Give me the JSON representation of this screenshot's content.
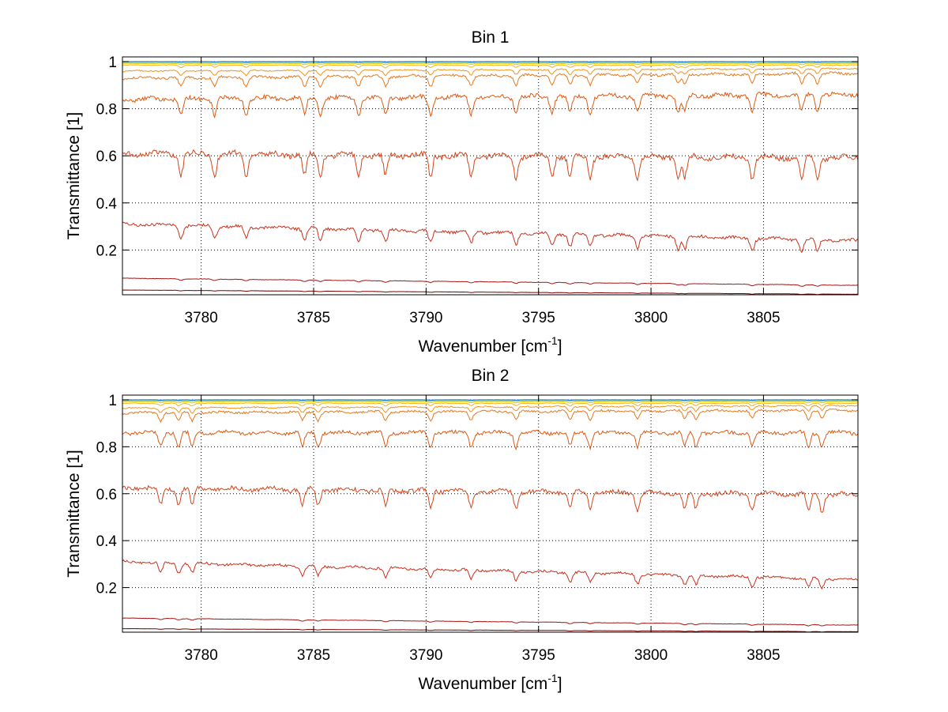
{
  "chart_data": [
    {
      "type": "line",
      "title": "Bin 1",
      "xlabel": "Wavenumber [cm",
      "xlabel_sup": "-1",
      "xlabel_end": "]",
      "ylabel": "Transmittance [1]",
      "xlim": [
        3776.5,
        3809.2
      ],
      "ylim": [
        0.01,
        1.02
      ],
      "xticks": [
        3780,
        3785,
        3790,
        3795,
        3800,
        3805
      ],
      "yticks": [
        0.2,
        0.4,
        0.6,
        0.8,
        1
      ],
      "ytick_labels": [
        "0.2",
        "0.4",
        "0.6",
        "0.8",
        "1"
      ],
      "grid": true,
      "line_lists": [
        3779.1,
        3780.6,
        3782.0,
        3784.6,
        3785.3,
        3787.0,
        3788.2,
        3790.2,
        3792.0,
        3794.0,
        3795.6,
        3796.4,
        3797.3,
        3799.4,
        3801.2,
        3801.5,
        3804.5,
        3806.7,
        3807.4
      ],
      "series": [
        {
          "color": "#7a0000",
          "start": 0.03,
          "end": 0.012,
          "depth": 0.002
        },
        {
          "color": "#a51414",
          "start": 0.08,
          "end": 0.05,
          "depth": 0.006
        },
        {
          "color": "#c8321e",
          "start": 0.31,
          "end": 0.24,
          "depth": 0.05
        },
        {
          "color": "#d2461e",
          "start": 0.61,
          "end": 0.59,
          "depth": 0.09
        },
        {
          "color": "#dc5a14",
          "start": 0.84,
          "end": 0.86,
          "depth": 0.07
        },
        {
          "color": "#e6781e",
          "start": 0.93,
          "end": 0.95,
          "depth": 0.04
        },
        {
          "color": "#f0961e",
          "start": 0.96,
          "end": 0.97,
          "depth": 0.02
        },
        {
          "color": "#f5b41e",
          "start": 0.985,
          "end": 0.985,
          "depth": 0.01
        },
        {
          "color": "#e6c814",
          "start": 0.992,
          "end": 0.992,
          "depth": 0.005
        },
        {
          "color": "#b4d232",
          "start": 0.996,
          "end": 0.996,
          "depth": 0.003
        },
        {
          "color": "#3cbec8",
          "start": 0.999,
          "end": 0.999,
          "depth": 0.002
        },
        {
          "color": "#1e6ed2",
          "start": 1.0,
          "end": 1.0,
          "depth": 0.001
        }
      ]
    },
    {
      "type": "line",
      "title": "Bin 2",
      "xlabel": "Wavenumber [cm",
      "xlabel_sup": "-1",
      "xlabel_end": "]",
      "ylabel": "Transmittance [1]",
      "xlim": [
        3776.5,
        3809.2
      ],
      "ylim": [
        0.01,
        1.02
      ],
      "xticks": [
        3780,
        3785,
        3790,
        3795,
        3800,
        3805
      ],
      "yticks": [
        0.2,
        0.4,
        0.6,
        0.8,
        1
      ],
      "ytick_labels": [
        "0.2",
        "0.4",
        "0.6",
        "0.8",
        "1"
      ],
      "grid": true,
      "line_lists": [
        3778.2,
        3779.0,
        3779.6,
        3784.5,
        3785.2,
        3788.2,
        3790.2,
        3792.0,
        3794.0,
        3796.4,
        3797.3,
        3799.4,
        3801.5,
        3802.0,
        3804.5,
        3807.0,
        3807.6
      ],
      "series": [
        {
          "color": "#7a0000",
          "start": 0.025,
          "end": 0.012,
          "depth": 0.002
        },
        {
          "color": "#a51414",
          "start": 0.07,
          "end": 0.04,
          "depth": 0.005
        },
        {
          "color": "#c8321e",
          "start": 0.31,
          "end": 0.235,
          "depth": 0.04
        },
        {
          "color": "#d2461e",
          "start": 0.625,
          "end": 0.595,
          "depth": 0.07
        },
        {
          "color": "#dc5a14",
          "start": 0.86,
          "end": 0.86,
          "depth": 0.06
        },
        {
          "color": "#e6781e",
          "start": 0.945,
          "end": 0.955,
          "depth": 0.035
        },
        {
          "color": "#f0961e",
          "start": 0.965,
          "end": 0.975,
          "depth": 0.02
        },
        {
          "color": "#f5b41e",
          "start": 0.985,
          "end": 0.985,
          "depth": 0.01
        },
        {
          "color": "#e6c814",
          "start": 0.992,
          "end": 0.992,
          "depth": 0.005
        },
        {
          "color": "#b4d232",
          "start": 0.996,
          "end": 0.996,
          "depth": 0.003
        },
        {
          "color": "#3cbec8",
          "start": 0.999,
          "end": 0.999,
          "depth": 0.002
        },
        {
          "color": "#1e6ed2",
          "start": 1.0,
          "end": 1.0,
          "depth": 0.001
        }
      ]
    }
  ]
}
